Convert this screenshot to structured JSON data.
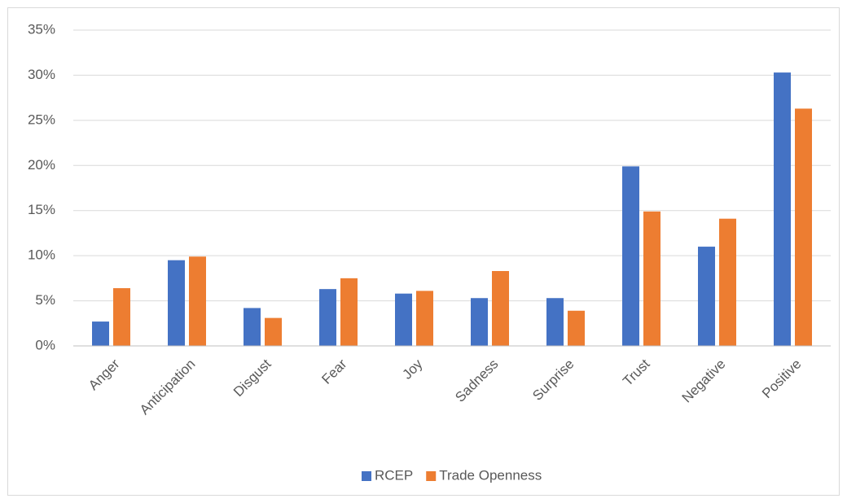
{
  "chart_data": {
    "type": "bar",
    "categories": [
      "Anger",
      "Anticipation",
      "Disgust",
      "Fear",
      "Joy",
      "Sadness",
      "Surprise",
      "Trust",
      "Negative",
      "Positive"
    ],
    "series": [
      {
        "name": "RCEP",
        "color": "#4472c4",
        "values": [
          2.7,
          9.5,
          4.2,
          6.3,
          5.8,
          5.3,
          5.3,
          19.9,
          11.0,
          30.3
        ]
      },
      {
        "name": "Trade Openness",
        "color": "#ed7d31",
        "values": [
          6.4,
          9.9,
          3.1,
          7.5,
          6.1,
          8.3,
          3.9,
          14.9,
          14.1,
          26.3
        ]
      }
    ],
    "ylim": [
      0,
      35
    ],
    "yticks": [
      {
        "value": 0,
        "label": "0%"
      },
      {
        "value": 5,
        "label": "5%"
      },
      {
        "value": 10,
        "label": "10%"
      },
      {
        "value": 15,
        "label": "15%"
      },
      {
        "value": 20,
        "label": "20%"
      },
      {
        "value": 25,
        "label": "25%"
      },
      {
        "value": 30,
        "label": "30%"
      },
      {
        "value": 35,
        "label": "35%"
      }
    ],
    "grid": true,
    "legend": "bottom"
  }
}
